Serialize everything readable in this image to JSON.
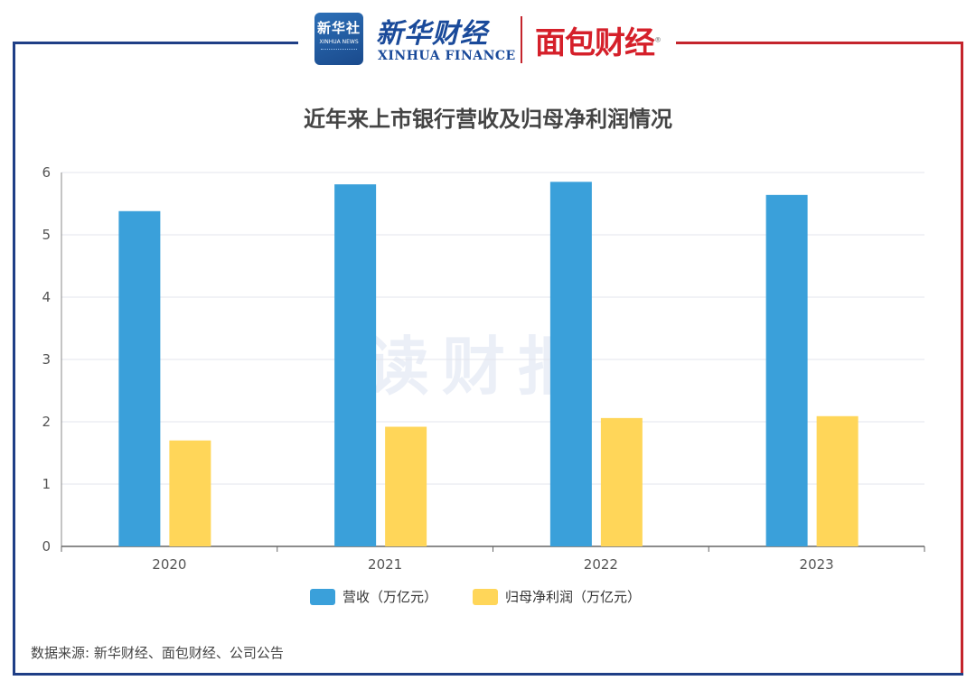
{
  "header": {
    "logo_text": "新华社",
    "logo_sub": "XINHUA NEWS",
    "brand_cn": "新华财经",
    "brand_en": "XINHUA FINANCE",
    "partner": "面包财经"
  },
  "watermark": "读财报",
  "source": "数据来源: 新华财经、面包财经、公司公告",
  "colors": {
    "revenue": "#3aa0da",
    "net_profit": "#ffd659",
    "frame_left": "#1f3f86",
    "frame_right": "#c4242c"
  },
  "chart_data": {
    "type": "bar",
    "title": "近年来上市银行营收及归母净利润情况",
    "categories": [
      "2020",
      "2021",
      "2022",
      "2023"
    ],
    "series": [
      {
        "name": "营收（万亿元）",
        "values": [
          5.38,
          5.81,
          5.85,
          5.64
        ]
      },
      {
        "name": "归母净利润（万亿元）",
        "values": [
          1.7,
          1.92,
          2.06,
          2.09
        ]
      }
    ],
    "ylim": [
      0,
      6
    ],
    "yticks": [
      "0",
      "1",
      "2",
      "3",
      "4",
      "5",
      "6"
    ],
    "xlabel": "",
    "ylabel": "",
    "grid": true,
    "legend": "bottom-center"
  }
}
